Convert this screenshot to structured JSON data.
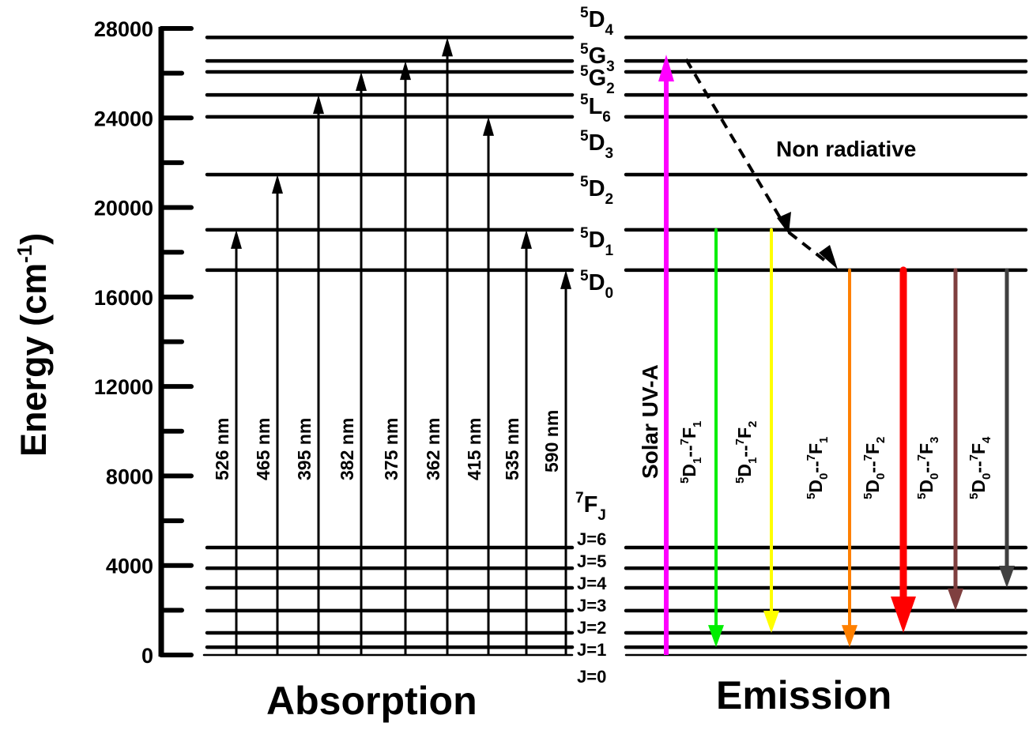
{
  "chart_data": {
    "type": "energy-level-diagram",
    "title": "",
    "ylabel": "Energy (cm-1)",
    "ylabel_base": "Energy (cm",
    "ylabel_exp": "-1",
    "ylabel_close": ")",
    "ylim": [
      0,
      28000
    ],
    "yticks": [
      0,
      4000,
      8000,
      12000,
      16000,
      20000,
      24000,
      28000
    ],
    "ytick_labels": [
      "0",
      "4000",
      "8000",
      "12000",
      "16000",
      "20000",
      "24000",
      "28000"
    ],
    "minor_tick_step": 2000,
    "excited_levels": [
      {
        "name": "5D4",
        "sup": "5",
        "base": "D",
        "sub": "4",
        "energy": 27600
      },
      {
        "name": "5G3",
        "sup": "5",
        "base": "G",
        "sub": "3",
        "energy": 26550
      },
      {
        "name": "5G2",
        "sup": "5",
        "base": "G",
        "sub": "2",
        "energy": 26060
      },
      {
        "name": "5L6",
        "sup": "5",
        "base": "L",
        "sub": "6",
        "energy": 25030
      },
      {
        "name": "5D3",
        "sup": "5",
        "base": "D",
        "sub": "3",
        "energy": 24050
      },
      {
        "name": "5D2",
        "sup": "5",
        "base": "D",
        "sub": "2",
        "energy": 21470
      },
      {
        "name": "5D1",
        "sup": "5",
        "base": "D",
        "sub": "1",
        "energy": 19000
      },
      {
        "name": "5D0",
        "sup": "5",
        "base": "D",
        "sub": "0",
        "energy": 17200
      }
    ],
    "ground_multiplet": {
      "sup": "7",
      "base": "F",
      "sub": "J"
    },
    "ground_levels": [
      {
        "label": "J=6",
        "energy": 4800
      },
      {
        "label": "J=5",
        "energy": 3880
      },
      {
        "label": "J=4",
        "energy": 3000
      },
      {
        "label": "J=3",
        "energy": 1980
      },
      {
        "label": "J=2",
        "energy": 990
      },
      {
        "label": "J=1",
        "energy": 350
      },
      {
        "label": "J=0",
        "energy": 0
      }
    ],
    "absorption": {
      "title": "Absorption",
      "transitions": [
        {
          "label": "526 nm",
          "from": 0,
          "to": "5D1",
          "to_energy": 19000
        },
        {
          "label": "465 nm",
          "from": 0,
          "to": "5D2",
          "to_energy": 21470
        },
        {
          "label": "395 nm",
          "from": 0,
          "to": "5L6",
          "to_energy": 25030
        },
        {
          "label": "382 nm",
          "from": 0,
          "to": "5G2",
          "to_energy": 26060
        },
        {
          "label": "375 nm",
          "from": 0,
          "to": "5G3",
          "to_energy": 26550
        },
        {
          "label": "362 nm",
          "from": 0,
          "to": "5D4",
          "to_energy": 27600
        },
        {
          "label": "415 nm",
          "from": 0,
          "to": "5D3",
          "to_energy": 24050
        },
        {
          "label": "535 nm",
          "from": 0,
          "to": "5D1",
          "to_energy": 19000
        },
        {
          "label": "590 nm",
          "from": 0,
          "to": "5D0",
          "to_energy": 17200
        }
      ]
    },
    "emission": {
      "title": "Emission",
      "excitation": {
        "label": "Solar UV-A",
        "from_energy": 0,
        "to_energy": 26550,
        "color": "#ff00ff"
      },
      "non_radiative": {
        "label": "Non radiative",
        "from": "5G3",
        "to": "5D0"
      },
      "transitions": [
        {
          "label": "5D1--7F1",
          "upper": "D",
          "upper_sub": "1",
          "lower_sub": "1",
          "from_energy": 19000,
          "to_energy": 350,
          "color": "#00ee00",
          "width": 4
        },
        {
          "label": "5D1--7F2",
          "upper": "D",
          "upper_sub": "1",
          "lower_sub": "2",
          "from_energy": 19000,
          "to_energy": 990,
          "color": "#ffff00",
          "width": 4
        },
        {
          "label": "5D0--7F1",
          "upper": "D",
          "upper_sub": "0",
          "lower_sub": "1",
          "from_energy": 17200,
          "to_energy": 350,
          "color": "#ff8000",
          "width": 4
        },
        {
          "label": "5D0--7F2",
          "upper": "D",
          "upper_sub": "0",
          "lower_sub": "2",
          "from_energy": 17200,
          "to_energy": 990,
          "color": "#ff0000",
          "width": 9
        },
        {
          "label": "5D0--7F3",
          "upper": "D",
          "upper_sub": "0",
          "lower_sub": "3",
          "from_energy": 17200,
          "to_energy": 1980,
          "color": "#7f3f3f",
          "width": 5
        },
        {
          "label": "5D0--7F4",
          "upper": "D",
          "upper_sub": "0",
          "lower_sub": "4",
          "from_energy": 17200,
          "to_energy": 3000,
          "color": "#404040",
          "width": 5
        }
      ]
    },
    "grid": false,
    "legend": "none"
  },
  "text": {
    "absorption_title": "Absorption",
    "emission_title": "Emission",
    "non_radiative": "Non radiative",
    "solar": "Solar UV-A",
    "ground_base": "F",
    "ground_sup": "7",
    "ground_sub": "J"
  }
}
